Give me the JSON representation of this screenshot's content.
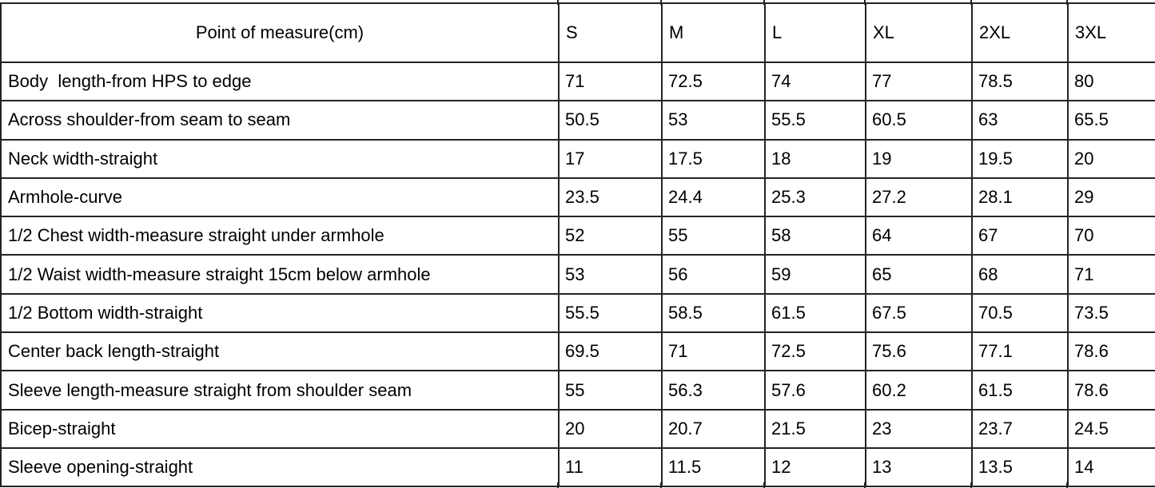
{
  "table": {
    "header": {
      "measure_label": "Point of measure(cm)",
      "sizes": [
        "S",
        "M",
        "L",
        "XL",
        "2XL",
        "3XL"
      ]
    },
    "rows": [
      {
        "label": "Body  length-from HPS to edge",
        "values": [
          "71",
          "72.5",
          "74",
          "77",
          "78.5",
          "80"
        ]
      },
      {
        "label": "Across shoulder-from seam to seam",
        "values": [
          "50.5",
          "53",
          "55.5",
          "60.5",
          "63",
          "65.5"
        ]
      },
      {
        "label": "Neck width-straight",
        "values": [
          "17",
          "17.5",
          "18",
          "19",
          "19.5",
          "20"
        ]
      },
      {
        "label": "Armhole-curve",
        "values": [
          "23.5",
          "24.4",
          "25.3",
          "27.2",
          "28.1",
          "29"
        ]
      },
      {
        "label": "1/2 Chest width-measure straight under armhole",
        "values": [
          "52",
          "55",
          "58",
          "64",
          "67",
          "70"
        ]
      },
      {
        "label": "1/2 Waist width-measure straight 15cm below armhole",
        "values": [
          "53",
          "56",
          "59",
          "65",
          "68",
          "71"
        ]
      },
      {
        "label": "1/2 Bottom width-straight",
        "values": [
          "55.5",
          "58.5",
          "61.5",
          "67.5",
          "70.5",
          "73.5"
        ]
      },
      {
        "label": "Center back length-straight",
        "values": [
          "69.5",
          "71",
          "72.5",
          "75.6",
          "77.1",
          "78.6"
        ]
      },
      {
        "label": "Sleeve length-measure straight from shoulder seam",
        "values": [
          "55",
          "56.3",
          "57.6",
          "60.2",
          "61.5",
          "78.6"
        ]
      },
      {
        "label": "Bicep-straight",
        "values": [
          "20",
          "20.7",
          "21.5",
          "23",
          "23.7",
          "24.5"
        ]
      },
      {
        "label": "Sleeve opening-straight",
        "values": [
          "11",
          "11.5",
          "12",
          "13",
          "13.5",
          "14"
        ]
      }
    ]
  },
  "chart_data": {
    "type": "table",
    "title": "Point of measure(cm)",
    "categories": [
      "S",
      "M",
      "L",
      "XL",
      "2XL",
      "3XL"
    ],
    "series": [
      {
        "name": "Body  length-from HPS to edge",
        "values": [
          71,
          72.5,
          74,
          77,
          78.5,
          80
        ]
      },
      {
        "name": "Across shoulder-from seam to seam",
        "values": [
          50.5,
          53,
          55.5,
          60.5,
          63,
          65.5
        ]
      },
      {
        "name": "Neck width-straight",
        "values": [
          17,
          17.5,
          18,
          19,
          19.5,
          20
        ]
      },
      {
        "name": "Armhole-curve",
        "values": [
          23.5,
          24.4,
          25.3,
          27.2,
          28.1,
          29
        ]
      },
      {
        "name": "1/2 Chest width-measure straight under armhole",
        "values": [
          52,
          55,
          58,
          64,
          67,
          70
        ]
      },
      {
        "name": "1/2 Waist width-measure straight 15cm below armhole",
        "values": [
          53,
          56,
          59,
          65,
          68,
          71
        ]
      },
      {
        "name": "1/2 Bottom width-straight",
        "values": [
          55.5,
          58.5,
          61.5,
          67.5,
          70.5,
          73.5
        ]
      },
      {
        "name": "Center back length-straight",
        "values": [
          69.5,
          71,
          72.5,
          75.6,
          77.1,
          78.6
        ]
      },
      {
        "name": "Sleeve length-measure straight from shoulder seam",
        "values": [
          55,
          56.3,
          57.6,
          60.2,
          61.5,
          78.6
        ]
      },
      {
        "name": "Bicep-straight",
        "values": [
          20,
          20.7,
          21.5,
          23,
          23.7,
          24.5
        ]
      },
      {
        "name": "Sleeve opening-straight",
        "values": [
          11,
          11.5,
          12,
          13,
          13.5,
          14
        ]
      }
    ]
  },
  "colors": {
    "border": "#232323",
    "text": "#000000",
    "background": "#ffffff"
  }
}
